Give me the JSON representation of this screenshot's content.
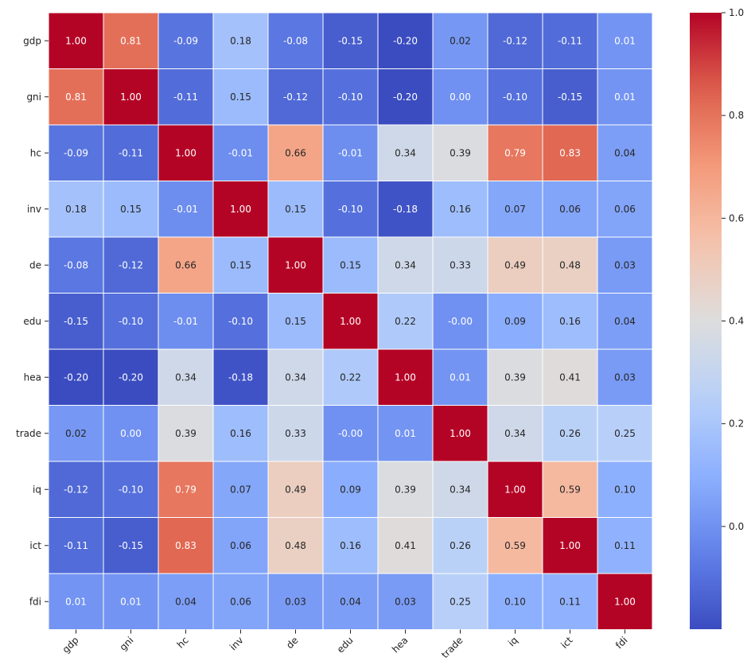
{
  "chart_data": {
    "type": "heatmap",
    "title": "",
    "xlabel": "",
    "ylabel": "",
    "labels": [
      "gdp",
      "gni",
      "hc",
      "inv",
      "de",
      "edu",
      "hea",
      "trade",
      "iq",
      "ict",
      "fdi"
    ],
    "matrix": [
      [
        1.0,
        0.81,
        -0.09,
        0.18,
        -0.08,
        -0.15,
        -0.2,
        0.02,
        -0.12,
        -0.11,
        0.01
      ],
      [
        0.81,
        1.0,
        -0.11,
        0.15,
        -0.12,
        -0.1,
        -0.2,
        0.0,
        -0.1,
        -0.15,
        0.01
      ],
      [
        -0.09,
        -0.11,
        1.0,
        -0.01,
        0.66,
        -0.01,
        0.34,
        0.39,
        0.79,
        0.83,
        0.04
      ],
      [
        0.18,
        0.15,
        -0.01,
        1.0,
        0.15,
        -0.1,
        -0.18,
        0.16,
        0.07,
        0.06,
        0.06
      ],
      [
        -0.08,
        -0.12,
        0.66,
        0.15,
        1.0,
        0.15,
        0.34,
        0.33,
        0.49,
        0.48,
        0.03
      ],
      [
        -0.15,
        -0.1,
        -0.01,
        -0.1,
        0.15,
        1.0,
        0.22,
        -0.001,
        0.09,
        0.16,
        0.04
      ],
      [
        -0.2,
        -0.2,
        0.34,
        -0.18,
        0.34,
        0.22,
        1.0,
        0.01,
        0.39,
        0.41,
        0.03
      ],
      [
        0.02,
        0.0,
        0.39,
        0.16,
        0.33,
        -0.001,
        0.01,
        1.0,
        0.34,
        0.26,
        0.25
      ],
      [
        -0.12,
        -0.1,
        0.79,
        0.07,
        0.49,
        0.09,
        0.39,
        0.34,
        1.0,
        0.59,
        0.1
      ],
      [
        -0.11,
        -0.15,
        0.83,
        0.06,
        0.48,
        0.16,
        0.41,
        0.26,
        0.59,
        1.0,
        0.11
      ],
      [
        0.01,
        0.01,
        0.04,
        0.06,
        0.03,
        0.04,
        0.03,
        0.25,
        0.1,
        0.11,
        1.0
      ]
    ],
    "value_format": "2 decimals",
    "colormap": "coolwarm",
    "vmin": -0.2,
    "vmax": 1.0,
    "colorbar_ticks": [
      "0.0",
      "0.2",
      "0.4",
      "0.6",
      "0.8",
      "1.0"
    ],
    "colorbar_tick_values": [
      0.0,
      0.2,
      0.4,
      0.6,
      0.8,
      1.0
    ],
    "grid_line_color": "#ffffff"
  }
}
